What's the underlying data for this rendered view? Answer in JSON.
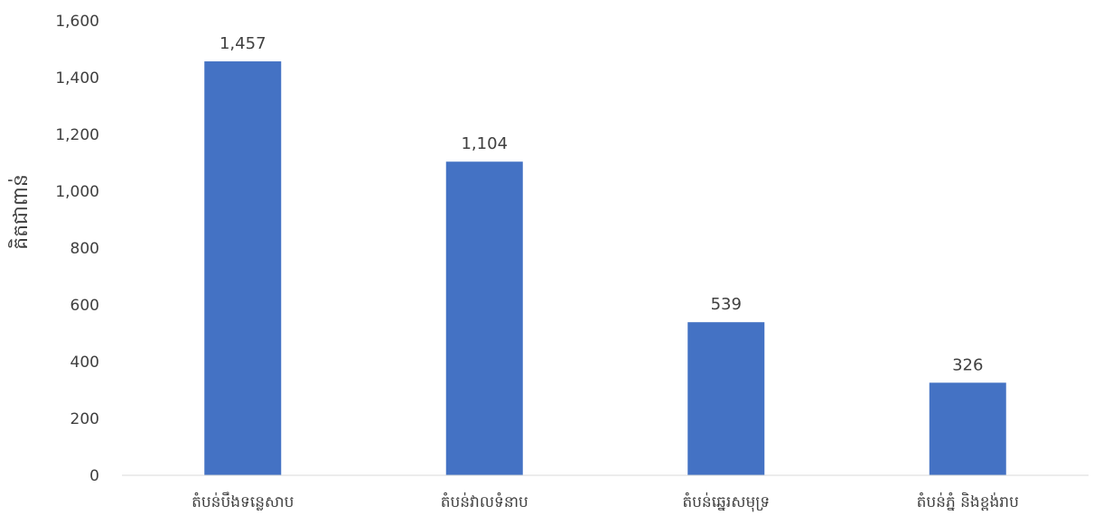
{
  "chart_data": {
    "type": "bar",
    "title": "",
    "xlabel": "",
    "ylabel": "គិតជាពាន់",
    "categories": [
      "តំបន់បឹងទន្លេសាប",
      "តំបន់វាលទំនាប",
      "តំបន់ឆ្នេរសមុទ្រ",
      "តំបន់ភ្នំ និងខ្ពង់រាប"
    ],
    "values": [
      1457,
      1104,
      539,
      326
    ],
    "value_labels": [
      "1,457",
      "1,104",
      "539",
      "326"
    ],
    "ylim": [
      0,
      1600
    ],
    "yticks": [
      0,
      200,
      400,
      600,
      800,
      1000,
      1200,
      1400,
      1600
    ],
    "ytick_labels": [
      "0",
      "200",
      "400",
      "600",
      "800",
      "1,000",
      "1,200",
      "1,400",
      "1,600"
    ],
    "grid": false,
    "bar_color": "#4472C4",
    "axis_color": "#D9D9D9",
    "text_color": "#404040"
  }
}
